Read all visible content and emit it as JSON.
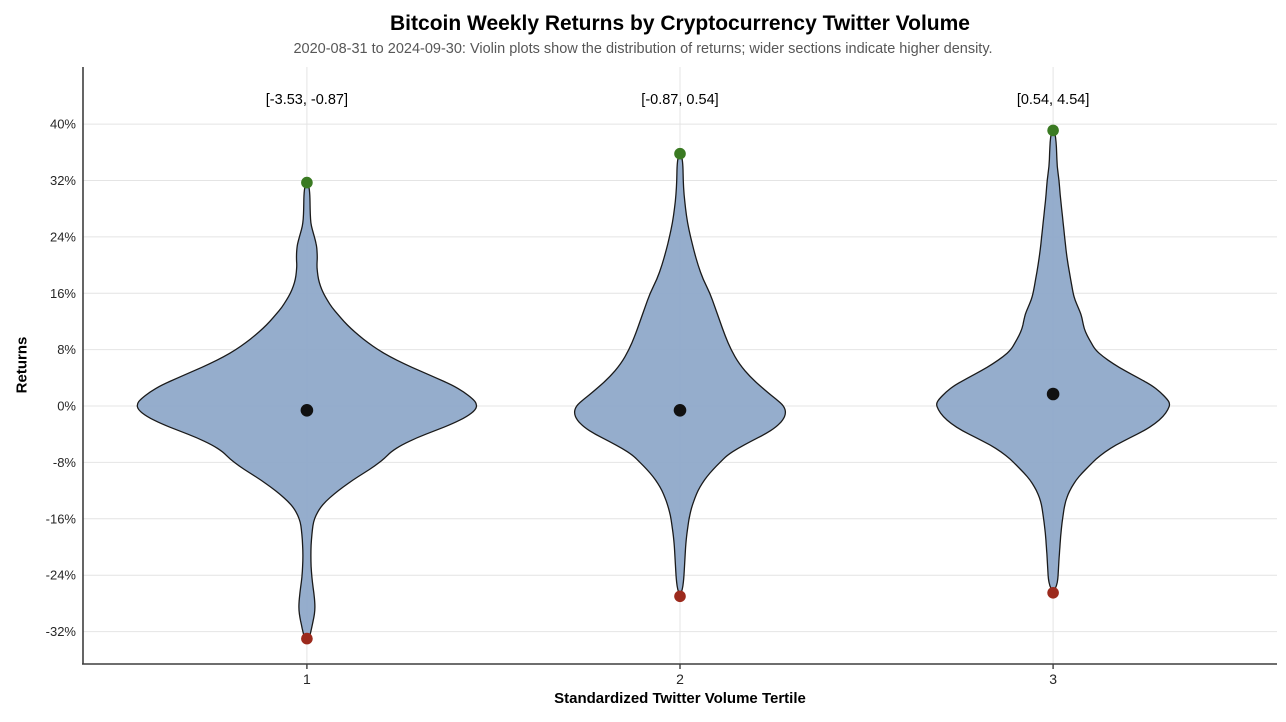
{
  "header": {
    "title": "Bitcoin Weekly Returns by Cryptocurrency Twitter Volume",
    "subtitle": "2020-08-31 to 2024-09-30: Violin plots show the distribution of returns; wider sections indicate higher density."
  },
  "chart_data": {
    "type": "violin",
    "title": "Bitcoin Weekly Returns by Cryptocurrency Twitter Volume",
    "subtitle": "2020-08-31 to 2024-09-30: Violin plots show the distribution of returns; wider sections indicate higher density.",
    "xlabel": "Standardized Twitter Volume Tertile",
    "ylabel": "Returns",
    "categories": [
      "1",
      "2",
      "3"
    ],
    "positions": [
      1,
      2,
      3
    ],
    "xlim": [
      0.4,
      3.6
    ],
    "ylim": [
      -36.6,
      48.1
    ],
    "y_ticks": [
      40,
      32,
      24,
      16,
      8,
      0,
      -8,
      -16,
      -24,
      -32
    ],
    "y_tick_labels": [
      "40%",
      "32%",
      "24%",
      "16%",
      "8%",
      "0%",
      "-8%",
      "-16%",
      "-24%",
      "-32%"
    ],
    "grid": true,
    "legend": "none",
    "colors": {
      "violin_fill": "#8fa9c9",
      "violin_stroke": "#1a1a1a",
      "max_dot": "#3a7a22",
      "min_dot": "#9c2a1d",
      "median_dot": "#111111",
      "gridline": "#e4e4e4",
      "spine": "#3f3f3f",
      "subtitle_text": "#575757"
    },
    "violins": [
      {
        "category": "1",
        "annotation": "[-3.53, -0.87]",
        "max_pct": 31.7,
        "min_pct": -33.0,
        "median_pct": -0.6,
        "profile": [
          [
            31.7,
            0
          ],
          [
            31.2,
            2
          ],
          [
            30,
            3
          ],
          [
            28,
            3.2
          ],
          [
            26.5,
            3.6
          ],
          [
            25.5,
            4.5
          ],
          [
            24.5,
            6.5
          ],
          [
            23.5,
            8.5
          ],
          [
            22.5,
            10
          ],
          [
            21,
            10.5
          ],
          [
            20,
            10
          ],
          [
            19,
            10.5
          ],
          [
            18,
            11.5
          ],
          [
            17,
            13.5
          ],
          [
            16,
            16.5
          ],
          [
            15,
            20.5
          ],
          [
            14,
            25
          ],
          [
            13,
            31
          ],
          [
            12,
            37
          ],
          [
            11,
            44
          ],
          [
            10,
            52
          ],
          [
            9,
            61
          ],
          [
            8,
            71
          ],
          [
            7,
            83
          ],
          [
            6,
            97
          ],
          [
            5,
            113
          ],
          [
            4,
            129
          ],
          [
            3,
            145
          ],
          [
            2,
            157
          ],
          [
            1,
            166
          ],
          [
            0.3,
            170
          ],
          [
            -0.5,
            169
          ],
          [
            -1.5,
            160
          ],
          [
            -2.5,
            146
          ],
          [
            -3.5,
            128
          ],
          [
            -4.5,
            110
          ],
          [
            -5.5,
            95
          ],
          [
            -6.5,
            84
          ],
          [
            -7.5,
            77
          ],
          [
            -8.5,
            68
          ],
          [
            -9.5,
            57
          ],
          [
            -10.5,
            46
          ],
          [
            -11.5,
            36
          ],
          [
            -12.5,
            27
          ],
          [
            -13.5,
            19
          ],
          [
            -14.5,
            13
          ],
          [
            -15.5,
            9
          ],
          [
            -16.5,
            6.5
          ],
          [
            -17.5,
            5.5
          ],
          [
            -19,
            4.5
          ],
          [
            -20.5,
            4
          ],
          [
            -22,
            4
          ],
          [
            -23.5,
            4.5
          ],
          [
            -25,
            5.5
          ],
          [
            -26.5,
            7
          ],
          [
            -28,
            8
          ],
          [
            -29,
            8
          ],
          [
            -30,
            7
          ],
          [
            -31,
            5.5
          ],
          [
            -32,
            4
          ],
          [
            -32.8,
            2.5
          ],
          [
            -33,
            0
          ]
        ]
      },
      {
        "category": "2",
        "annotation": "[-0.87, 0.54]",
        "max_pct": 35.8,
        "min_pct": -27.0,
        "median_pct": -0.6,
        "profile": [
          [
            35.8,
            0
          ],
          [
            35.3,
            2
          ],
          [
            34,
            3
          ],
          [
            32,
            3.2
          ],
          [
            30,
            4
          ],
          [
            28,
            5.5
          ],
          [
            26,
            7.5
          ],
          [
            24,
            10.5
          ],
          [
            22,
            14
          ],
          [
            20,
            18
          ],
          [
            18,
            23
          ],
          [
            16,
            30
          ],
          [
            14,
            35
          ],
          [
            12,
            40
          ],
          [
            10,
            45
          ],
          [
            8,
            51
          ],
          [
            6,
            59
          ],
          [
            4,
            71
          ],
          [
            2,
            87
          ],
          [
            1,
            96
          ],
          [
            0,
            104
          ],
          [
            -1,
            106
          ],
          [
            -2,
            103
          ],
          [
            -3,
            96
          ],
          [
            -4,
            85
          ],
          [
            -5,
            71
          ],
          [
            -6,
            58
          ],
          [
            -7,
            47
          ],
          [
            -8,
            40
          ],
          [
            -9,
            33
          ],
          [
            -10,
            27
          ],
          [
            -11,
            22
          ],
          [
            -12,
            18
          ],
          [
            -13,
            15
          ],
          [
            -14,
            12.5
          ],
          [
            -15,
            10.5
          ],
          [
            -16,
            9
          ],
          [
            -17,
            8
          ],
          [
            -18,
            7
          ],
          [
            -19,
            6.2
          ],
          [
            -20,
            5.6
          ],
          [
            -21,
            5.2
          ],
          [
            -22,
            4.8
          ],
          [
            -23,
            4.4
          ],
          [
            -24,
            4
          ],
          [
            -25,
            3.4
          ],
          [
            -26,
            2.4
          ],
          [
            -27,
            0
          ]
        ]
      },
      {
        "category": "3",
        "annotation": "[0.54, 4.54]",
        "max_pct": 39.1,
        "min_pct": -26.5,
        "median_pct": 1.7,
        "profile": [
          [
            39.1,
            0
          ],
          [
            38.6,
            2
          ],
          [
            37.5,
            3
          ],
          [
            36,
            3.5
          ],
          [
            34,
            4
          ],
          [
            32,
            6
          ],
          [
            30,
            7
          ],
          [
            28,
            8.5
          ],
          [
            26,
            10
          ],
          [
            24,
            11.5
          ],
          [
            22,
            13
          ],
          [
            20,
            15
          ],
          [
            18,
            17.5
          ],
          [
            16,
            20
          ],
          [
            15,
            22
          ],
          [
            14,
            25
          ],
          [
            13,
            28
          ],
          [
            12,
            29.5
          ],
          [
            11,
            31
          ],
          [
            10,
            34
          ],
          [
            9,
            38
          ],
          [
            8,
            42
          ],
          [
            7,
            50
          ],
          [
            6,
            60
          ],
          [
            5,
            72
          ],
          [
            4,
            85
          ],
          [
            3,
            98
          ],
          [
            2,
            107
          ],
          [
            1,
            114
          ],
          [
            0.3,
            117
          ],
          [
            -0.5,
            115
          ],
          [
            -1.5,
            110
          ],
          [
            -2.5,
            102
          ],
          [
            -3.5,
            91
          ],
          [
            -4.5,
            77
          ],
          [
            -5.5,
            63
          ],
          [
            -6.5,
            52
          ],
          [
            -7.5,
            43
          ],
          [
            -8.5,
            36
          ],
          [
            -9.5,
            29
          ],
          [
            -10.5,
            23
          ],
          [
            -11.5,
            18.5
          ],
          [
            -12.5,
            15
          ],
          [
            -13.5,
            12.5
          ],
          [
            -14.5,
            11
          ],
          [
            -15.5,
            10
          ],
          [
            -16.5,
            9
          ],
          [
            -17.5,
            8.2
          ],
          [
            -18.5,
            7.5
          ],
          [
            -19.5,
            7
          ],
          [
            -20.5,
            6.5
          ],
          [
            -21.5,
            6
          ],
          [
            -22.5,
            5.6
          ],
          [
            -23.5,
            5.2
          ],
          [
            -24.5,
            4.8
          ],
          [
            -25.5,
            3.5
          ],
          [
            -26.5,
            0
          ]
        ]
      }
    ]
  }
}
